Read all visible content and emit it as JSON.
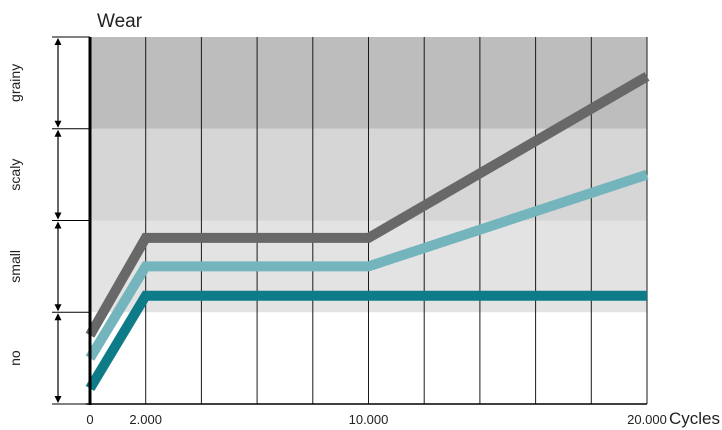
{
  "chart_data": {
    "type": "line",
    "title": "Wear",
    "xlabel": "Cycles",
    "ylabel": "",
    "x_ticks": [
      {
        "value": 0,
        "label": "0"
      },
      {
        "value": 2000,
        "label": "2.000"
      },
      {
        "value": 10000,
        "label": "10.000"
      },
      {
        "value": 20000,
        "label": "20.000"
      }
    ],
    "x_gridlines": [
      0,
      2000,
      4000,
      6000,
      8000,
      10000,
      12000,
      14000,
      16000,
      18000,
      20000
    ],
    "xlim": [
      0,
      20000
    ],
    "ylim": [
      0,
      4
    ],
    "wear_levels": [
      {
        "label": "no",
        "from": 0,
        "to": 1,
        "fill": "#ffffff"
      },
      {
        "label": "small",
        "from": 1,
        "to": 2,
        "fill": "#e3e3e3"
      },
      {
        "label": "scaly",
        "from": 2,
        "to": 3,
        "fill": "#d6d6d6"
      },
      {
        "label": "grainy",
        "from": 3,
        "to": 4,
        "fill": "#bdbdbd"
      }
    ],
    "series": [
      {
        "color": "#686868",
        "x": [
          0,
          2000,
          10000,
          20000
        ],
        "y": [
          0.75,
          1.81,
          1.81,
          3.57
        ]
      },
      {
        "color": "#74b4bc",
        "x": [
          0,
          2000,
          10000,
          20000
        ],
        "y": [
          0.5,
          1.5,
          1.5,
          2.5
        ]
      },
      {
        "color": "#0e7c88",
        "x": [
          0,
          2000,
          10000,
          20000
        ],
        "y": [
          0.17,
          1.18,
          1.18,
          1.18
        ]
      }
    ],
    "grid": true,
    "legend": "none"
  }
}
